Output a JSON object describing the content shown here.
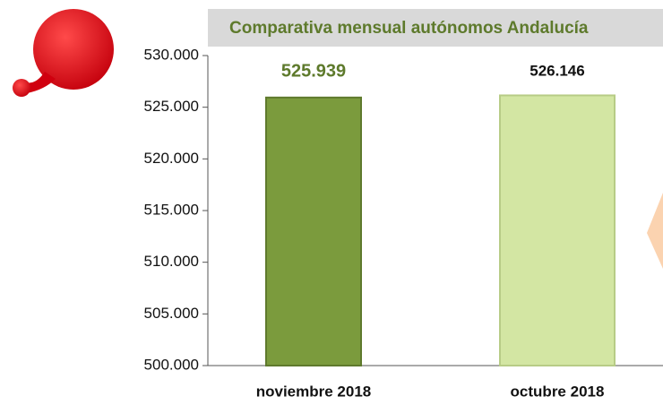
{
  "chart_data": {
    "type": "bar",
    "title": "Comparativa mensual autónomos Andalucía",
    "categories": [
      "noviembre 2018",
      "octubre 2018"
    ],
    "values": [
      525939,
      526146
    ],
    "value_labels": [
      "525.939",
      "526.146"
    ],
    "colors": [
      "#7b9b3d",
      "#d3e6a3"
    ],
    "ylim": [
      500000,
      530000
    ],
    "yticks": [
      {
        "value": 500000,
        "label": "500.000"
      },
      {
        "value": 505000,
        "label": "505.000"
      },
      {
        "value": 510000,
        "label": "510.000"
      },
      {
        "value": 515000,
        "label": "515.000"
      },
      {
        "value": 520000,
        "label": "520.000"
      },
      {
        "value": 525000,
        "label": "525.000"
      },
      {
        "value": 530000,
        "label": "530.000"
      }
    ],
    "grid": false
  }
}
